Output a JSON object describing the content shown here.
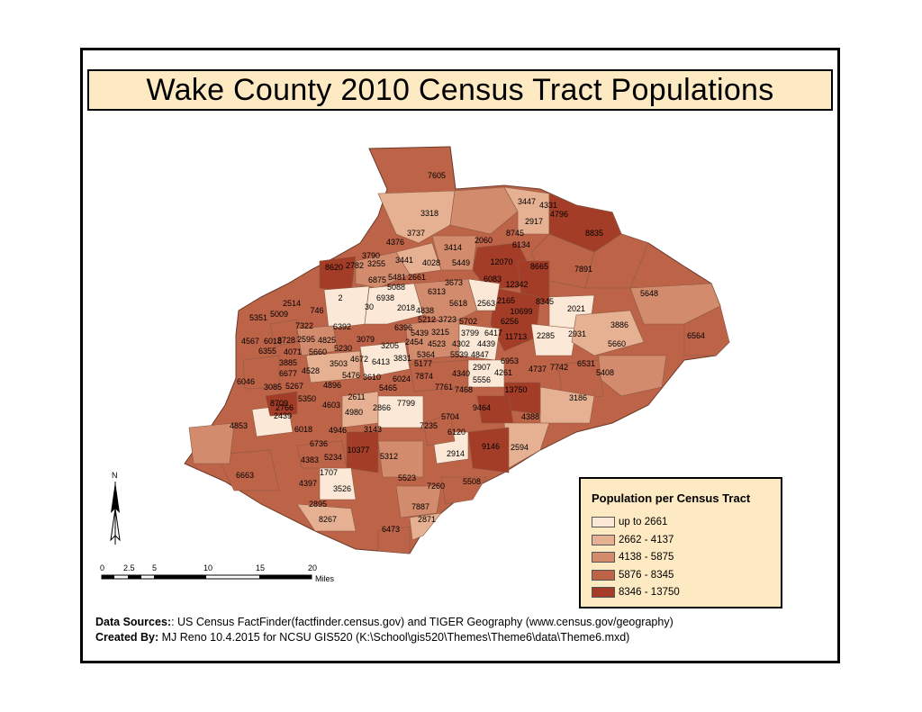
{
  "title": "Wake County 2010 Census Tract Populations",
  "legend": {
    "title": "Population per Census Tract",
    "classes": [
      {
        "label": "up to 2661",
        "color": "#fbe8d6"
      },
      {
        "label": "2662 - 4137",
        "color": "#e6b092"
      },
      {
        "label": "4138 - 5875",
        "color": "#d28b6c"
      },
      {
        "label": "5876 - 8345",
        "color": "#bd6348"
      },
      {
        "label": "8346 - 13750",
        "color": "#a43d27"
      }
    ]
  },
  "tract_labels": [
    "7605",
    "3447",
    "4331",
    "2917",
    "4796",
    "8835",
    "3318",
    "3737",
    "8745",
    "6134",
    "4376",
    "3414",
    "2060",
    "3790",
    "3441",
    "4028",
    "5449",
    "12070",
    "8665",
    "7891",
    "8620",
    "2782",
    "3255",
    "6875",
    "5481",
    "2661",
    "6083",
    "5648",
    "2",
    "30",
    "746",
    "2514",
    "6938",
    "5088",
    "6313",
    "3673",
    "12342",
    "8345",
    "2021",
    "5351",
    "5009",
    "6018",
    "2018",
    "4838",
    "5618",
    "2563",
    "2165",
    "10699",
    "7322",
    "6392",
    "6396",
    "5212",
    "3723",
    "5702",
    "6256",
    "3886",
    "6564",
    "4567",
    "3728",
    "2595",
    "4825",
    "3079",
    "5439",
    "3215",
    "3799",
    "6417",
    "11713",
    "2285",
    "2931",
    "6355",
    "4071",
    "5660",
    "5230",
    "3205",
    "2454",
    "4523",
    "4302",
    "4439",
    "5660",
    "3885",
    "3503",
    "4672",
    "6413",
    "3831",
    "5364",
    "5539",
    "4847",
    "6953",
    "5408",
    "6677",
    "4528",
    "5476",
    "3610",
    "5177",
    "4340",
    "2907",
    "4261",
    "4737",
    "7742",
    "6531",
    "6046",
    "3085",
    "5267",
    "4896",
    "6024",
    "7874",
    "5556",
    "7761",
    "7468",
    "13750",
    "3186",
    "5465",
    "8709",
    "5350",
    "4603",
    "2611",
    "2866",
    "7799",
    "9464",
    "4388",
    "2766",
    "4980",
    "2439",
    "7235",
    "5704",
    "6120",
    "4853",
    "6018",
    "4946",
    "3143",
    "2914",
    "9146",
    "2594",
    "6736",
    "10377",
    "5312",
    "4383",
    "5234",
    "6663",
    "1707",
    "4397",
    "3526",
    "5523",
    "7260",
    "5508",
    "2895",
    "7887",
    "8267",
    "2871",
    "6473"
  ],
  "scale": {
    "unit_label": "Miles",
    "ticks": [
      "0",
      "2.5",
      "5",
      "10",
      "15",
      "20"
    ]
  },
  "north_label": "N",
  "footer": {
    "sources_label": "Data Sources:",
    "sources_text": ":  US Census FactFinder(factfinder.census.gov) and TIGER Geography (www.census.gov/geography)",
    "created_label": "Created By:",
    "created_text": " MJ Reno 10.4.2015 for NCSU GIS520 (K:\\School\\gis520\\Themes\\Theme6\\data\\Theme6.mxd)"
  }
}
